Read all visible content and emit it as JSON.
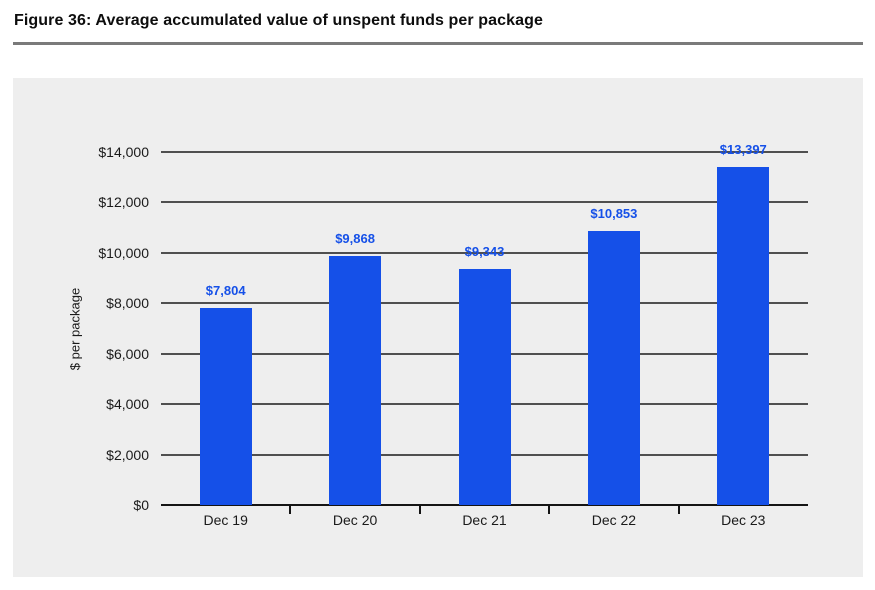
{
  "figure": {
    "title": "Figure 36: Average accumulated value of unspent funds per package"
  },
  "chart_data": {
    "type": "bar",
    "title": "Figure 36: Average accumulated value of unspent funds per package",
    "categories": [
      "Dec 19",
      "Dec 20",
      "Dec 21",
      "Dec 22",
      "Dec 23"
    ],
    "values": [
      7804,
      9868,
      9343,
      10853,
      13397
    ],
    "value_labels": [
      "$7,804",
      "$9,868",
      "$9,343",
      "$10,853",
      "$13,397"
    ],
    "xlabel": "",
    "ylabel": "$ per package",
    "ylim": [
      0,
      14000
    ],
    "ytick_step": 2000,
    "ytick_labels": [
      "$0",
      "$2,000",
      "$4,000",
      "$6,000",
      "$8,000",
      "$10,000",
      "$12,000",
      "$14,000"
    ],
    "grid": true,
    "legend_position": "none",
    "colors": {
      "bar": "#1550e8",
      "value_label": "#1550e8",
      "panel_background": "#eeeeee",
      "gridline": "#4f4f4f",
      "axis_line": "#141414",
      "tick_text": "#1a1a1a"
    }
  }
}
